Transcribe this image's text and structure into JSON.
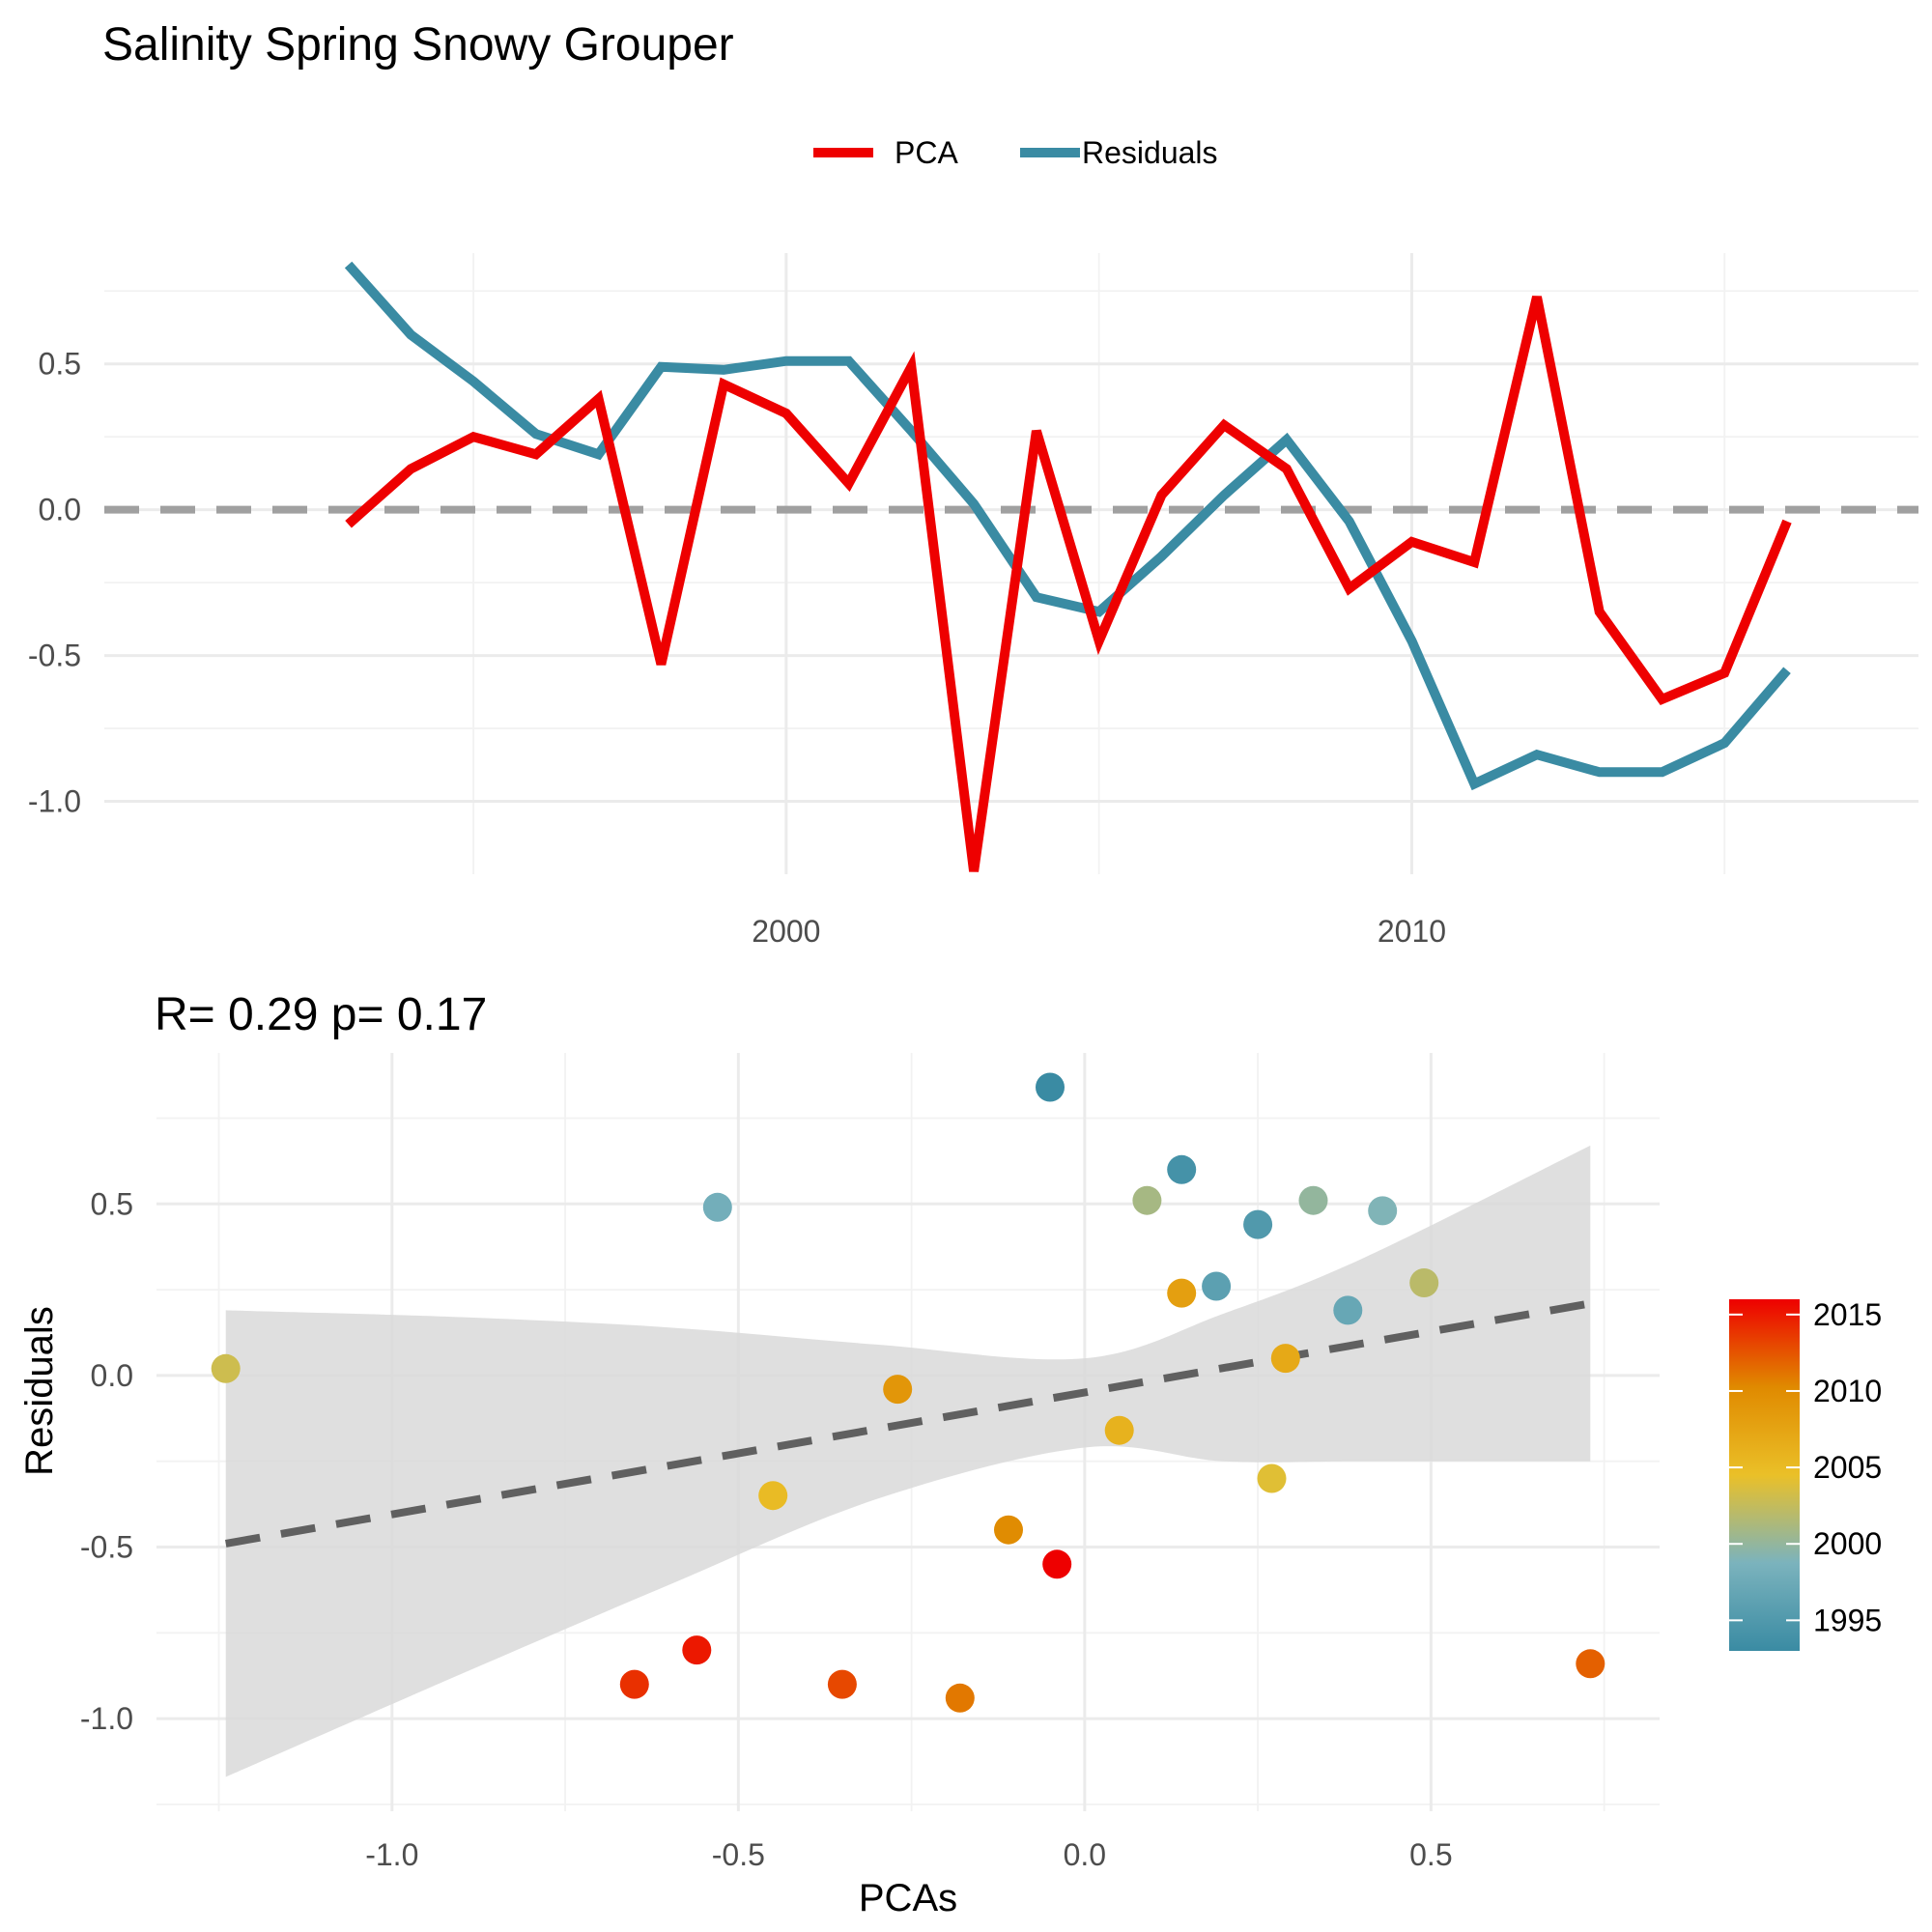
{
  "figure": {
    "title": "Salinity Spring Snowy Grouper"
  },
  "legend": {
    "items": [
      {
        "label": "PCA",
        "color": "#ee0000"
      },
      {
        "label": "Residuals",
        "color": "#3a8ba3"
      }
    ]
  },
  "chart_data": [
    {
      "type": "line",
      "title": "",
      "xlabel": "",
      "ylabel": "",
      "x": [
        1993,
        1994,
        1995,
        1996,
        1997,
        1998,
        1999,
        2000,
        2001,
        2002,
        2003,
        2004,
        2005,
        2006,
        2007,
        2008,
        2009,
        2010,
        2011,
        2012,
        2013,
        2014,
        2015,
        2016
      ],
      "series": [
        {
          "name": "PCA",
          "color": "#ee0000",
          "values": [
            -0.05,
            0.14,
            0.25,
            0.19,
            0.38,
            -0.53,
            0.43,
            0.33,
            0.09,
            0.49,
            -1.24,
            0.27,
            -0.45,
            0.05,
            0.29,
            0.14,
            -0.27,
            -0.11,
            -0.18,
            0.73,
            -0.35,
            -0.65,
            -0.56,
            -0.04
          ]
        },
        {
          "name": "Residuals",
          "color": "#3a8ba3",
          "values": [
            0.84,
            0.6,
            0.44,
            0.26,
            0.19,
            0.49,
            0.48,
            0.51,
            0.51,
            0.27,
            0.02,
            -0.3,
            -0.35,
            -0.16,
            0.05,
            0.24,
            -0.04,
            -0.45,
            -0.94,
            -0.84,
            -0.9,
            -0.9,
            -0.8,
            -0.55
          ]
        }
      ],
      "reference_line": {
        "y": 0,
        "style": "dashed",
        "color": "#a0a0a0"
      },
      "xlim": [
        1989.1,
        2018.1
      ],
      "ylim": [
        -1.25,
        0.88
      ],
      "x_ticks": [
        2000,
        2010
      ],
      "y_ticks": [
        -1.0,
        -0.5,
        0.0,
        0.5
      ],
      "y_tick_labels": [
        "-1.0",
        "-0.5",
        "0.0",
        "0.5"
      ],
      "grid": true,
      "legend_position": "top"
    },
    {
      "type": "scatter",
      "title": "R= 0.29  p= 0.17",
      "xlabel": "PCAs",
      "ylabel": "Residuals",
      "points": [
        {
          "x": -0.05,
          "y": 0.84,
          "year": 1993
        },
        {
          "x": 0.14,
          "y": 0.6,
          "year": 1994
        },
        {
          "x": 0.25,
          "y": 0.44,
          "year": 1995
        },
        {
          "x": 0.19,
          "y": 0.26,
          "year": 1996
        },
        {
          "x": 0.38,
          "y": 0.19,
          "year": 1997
        },
        {
          "x": -0.53,
          "y": 0.49,
          "year": 1998
        },
        {
          "x": 0.43,
          "y": 0.48,
          "year": 1999
        },
        {
          "x": 0.33,
          "y": 0.51,
          "year": 2000
        },
        {
          "x": 0.09,
          "y": 0.51,
          "year": 2001
        },
        {
          "x": 0.49,
          "y": 0.27,
          "year": 2002
        },
        {
          "x": -1.24,
          "y": 0.02,
          "year": 2003
        },
        {
          "x": 0.27,
          "y": -0.3,
          "year": 2004
        },
        {
          "x": -0.45,
          "y": -0.35,
          "year": 2005
        },
        {
          "x": 0.05,
          "y": -0.16,
          "year": 2006
        },
        {
          "x": 0.29,
          "y": 0.05,
          "year": 2007
        },
        {
          "x": 0.14,
          "y": 0.24,
          "year": 2008
        },
        {
          "x": -0.27,
          "y": -0.04,
          "year": 2009
        },
        {
          "x": -0.11,
          "y": -0.45,
          "year": 2010
        },
        {
          "x": -0.18,
          "y": -0.94,
          "year": 2011
        },
        {
          "x": 0.73,
          "y": -0.84,
          "year": 2012
        },
        {
          "x": -0.35,
          "y": -0.9,
          "year": 2013
        },
        {
          "x": -0.65,
          "y": -0.9,
          "year": 2014
        },
        {
          "x": -0.56,
          "y": -0.8,
          "year": 2015
        },
        {
          "x": -0.04,
          "y": -0.55,
          "year": 2016
        }
      ],
      "trend_line": {
        "x": [
          -1.24,
          0.73
        ],
        "y": [
          -0.49,
          0.21
        ],
        "style": "dashed",
        "color": "#606060"
      },
      "confidence_band": {
        "x": [
          -1.24,
          -0.9,
          -0.6,
          -0.3,
          0.0,
          0.2,
          0.4,
          0.73
        ],
        "upper": [
          0.19,
          0.17,
          0.14,
          0.09,
          0.05,
          0.18,
          0.34,
          0.67
        ],
        "lower": [
          -1.17,
          -0.87,
          -0.61,
          -0.36,
          -0.21,
          -0.25,
          -0.25,
          -0.25
        ],
        "color": "#d9d9d9"
      },
      "xlim": [
        -1.34,
        0.83
      ],
      "ylim": [
        -1.27,
        0.94
      ],
      "x_ticks": [
        -1.0,
        -0.5,
        0.0,
        0.5
      ],
      "x_tick_labels": [
        "-1.0",
        "-0.5",
        "0.0",
        "0.5"
      ],
      "y_ticks": [
        -1.0,
        -0.5,
        0.0,
        0.5
      ],
      "y_tick_labels": [
        "-1.0",
        "-0.5",
        "0.0",
        "0.5"
      ],
      "grid": true,
      "colorbar": {
        "ticks": [
          1995,
          2000,
          2005,
          2010,
          2015
        ],
        "range": [
          1993,
          2016
        ],
        "colors": [
          "#3a8ba3",
          "#7bb3bd",
          "#eac028",
          "#e08a00",
          "#ee0000"
        ],
        "position": "right"
      }
    }
  ]
}
